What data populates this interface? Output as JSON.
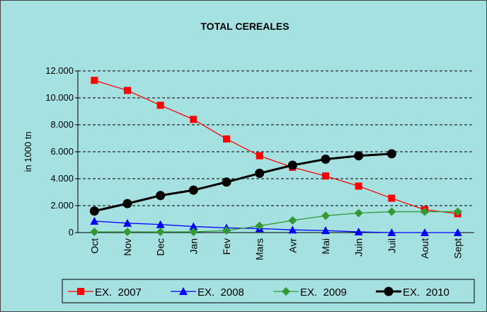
{
  "chart_data": {
    "type": "line",
    "title": "TOTAL CEREALES",
    "y_label": "in 1000 tn",
    "categories": [
      "Oct",
      "Nov",
      "Dec",
      "Jan",
      "Fev",
      "Mars",
      "Avr",
      "Mai",
      "Juin",
      "Juil",
      "Aout",
      "Sept"
    ],
    "series": [
      {
        "name": "EX.  2007",
        "color": "#ff0000",
        "marker": "square",
        "values": [
          11300,
          10550,
          9450,
          8400,
          6950,
          5700,
          4850,
          4200,
          3450,
          2550,
          1700,
          1400
        ]
      },
      {
        "name": "EX.  2008",
        "color": "#0000ff",
        "marker": "triangle",
        "values": [
          850,
          700,
          600,
          450,
          350,
          300,
          200,
          150,
          50,
          0,
          0,
          0
        ]
      },
      {
        "name": "EX.  2009",
        "color": "#339933",
        "marker": "diamond",
        "values": [
          50,
          50,
          50,
          50,
          150,
          500,
          900,
          1250,
          1450,
          1550,
          1550,
          1550
        ]
      },
      {
        "name": "EX.  2010",
        "color": "#000000",
        "marker": "circle",
        "values": [
          1600,
          2150,
          2750,
          3150,
          3750,
          4400,
          5000,
          5450,
          5700,
          5850,
          null,
          null
        ]
      }
    ],
    "ylim": [
      0,
      12000
    ],
    "yticks": [
      0,
      {
        "value": 2000,
        "label": "2.000"
      },
      {
        "value": 4000,
        "label": "4.000"
      },
      {
        "value": 6000,
        "label": "6.000"
      },
      {
        "value": 8000,
        "label": "8.000"
      },
      {
        "value": 10000,
        "label": "10.000"
      },
      {
        "value": 12000,
        "label": "12.000"
      }
    ],
    "grid": true,
    "legend": "bottom"
  }
}
